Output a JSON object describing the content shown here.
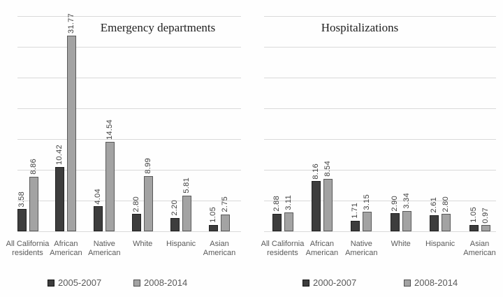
{
  "chart_data": [
    {
      "type": "bar",
      "title": "Emergency departments",
      "categories": [
        "All California residents",
        "African American",
        "Native American",
        "White",
        "Hispanic",
        "Asian American"
      ],
      "series": [
        {
          "name": "2005-2007",
          "color": "#3d3d3d",
          "values": [
            3.58,
            10.42,
            4.04,
            2.8,
            2.2,
            1.05
          ]
        },
        {
          "name": "2008-2014",
          "color": "#a3a3a3",
          "values": [
            8.86,
            31.77,
            14.54,
            8.99,
            5.81,
            2.75
          ]
        }
      ],
      "ylim": [
        0,
        35
      ],
      "grid_step": 5,
      "grid": true,
      "data_labels": true,
      "data_label_rotation": 90,
      "legend_position": "bottom"
    },
    {
      "type": "bar",
      "title": "Hospitalizations",
      "categories": [
        "All California residents",
        "African American",
        "Native American",
        "White",
        "Hispanic",
        "Asian American"
      ],
      "series": [
        {
          "name": "2000-2007",
          "color": "#3d3d3d",
          "values": [
            2.88,
            8.16,
            1.71,
            2.9,
            2.61,
            1.05
          ]
        },
        {
          "name": "2008-2014",
          "color": "#a3a3a3",
          "values": [
            3.11,
            8.54,
            3.15,
            3.34,
            2.8,
            0.97
          ]
        }
      ],
      "ylim": [
        0,
        35
      ],
      "grid_step": 5,
      "grid": true,
      "data_labels": true,
      "data_label_rotation": 90,
      "legend_position": "bottom"
    }
  ],
  "colors": {
    "series_dark": "#3d3d3d",
    "series_gray": "#a3a3a3",
    "gridline": "#d9d9d9",
    "label_text": "#595959",
    "value_text": "#404040",
    "background": "#ffffff"
  }
}
